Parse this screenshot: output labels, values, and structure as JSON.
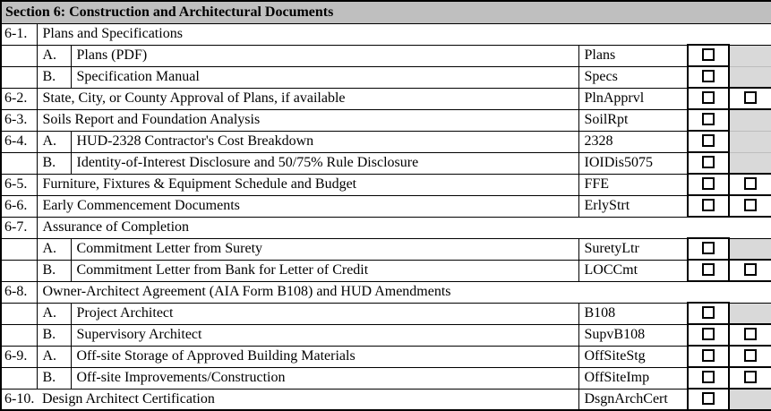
{
  "table": {
    "header": {
      "title": "Section 6: Construction and Architectural Documents"
    },
    "colors": {
      "header_bg": "#bfbfbf",
      "shaded_cell": "#d9d9d9",
      "border": "#000000",
      "background": "#ffffff"
    },
    "checkbox_legend": "all checkboxes unchecked",
    "rows": [
      {
        "type": "group",
        "num": "6-1.",
        "text": "Plans and Specifications"
      },
      {
        "type": "item",
        "num": "",
        "letter": "A.",
        "text": "Plans (PDF)",
        "code": "Plans",
        "box1": "checkbox-unchecked",
        "box2": "shaded"
      },
      {
        "type": "item",
        "num": "",
        "letter": "B.",
        "text": "Specification Manual",
        "code": "Specs",
        "box1": "checkbox-unchecked",
        "box2": "shaded"
      },
      {
        "type": "item",
        "num": "6-2.",
        "letter": null,
        "text": "State, City, or County Approval of Plans, if available",
        "code": "PlnApprvl",
        "box1": "checkbox-unchecked",
        "box2": "checkbox-unchecked"
      },
      {
        "type": "item",
        "num": "6-3.",
        "letter": null,
        "text": "Soils Report and Foundation Analysis",
        "code": "SoilRpt",
        "box1": "checkbox-unchecked",
        "box2": "shaded"
      },
      {
        "type": "item",
        "num": "6-4.",
        "letter": "A.",
        "text": "HUD-2328 Contractor's Cost Breakdown",
        "code": "2328",
        "box1": "checkbox-unchecked",
        "box2": "shaded"
      },
      {
        "type": "item",
        "num": "",
        "letter": "B.",
        "text": "Identity-of-Interest Disclosure and 50/75% Rule Disclosure",
        "code": "IOIDis5075",
        "box1": "checkbox-unchecked",
        "box2": "shaded"
      },
      {
        "type": "item",
        "num": "6-5.",
        "letter": null,
        "text": "Furniture, Fixtures & Equipment Schedule and Budget",
        "code": "FFE",
        "box1": "checkbox-unchecked",
        "box2": "checkbox-unchecked"
      },
      {
        "type": "item",
        "num": "6-6.",
        "letter": null,
        "text": "Early Commencement Documents",
        "code": "ErlyStrt",
        "box1": "checkbox-unchecked",
        "box2": "checkbox-unchecked"
      },
      {
        "type": "group",
        "num": "6-7.",
        "text": "Assurance of Completion"
      },
      {
        "type": "item",
        "num": "",
        "letter": "A.",
        "text": "Commitment Letter from Surety",
        "code": "SuretyLtr",
        "box1": "checkbox-unchecked",
        "box2": "shaded"
      },
      {
        "type": "item",
        "num": "",
        "letter": "B.",
        "text": "Commitment Letter from Bank for Letter of Credit",
        "code": "LOCCmt",
        "box1": "checkbox-unchecked",
        "box2": "checkbox-unchecked"
      },
      {
        "type": "group",
        "num": "6-8.",
        "text": "Owner-Architect Agreement (AIA Form B108) and HUD Amendments"
      },
      {
        "type": "item",
        "num": "",
        "letter": "A.",
        "text": "Project Architect",
        "code": "B108",
        "box1": "checkbox-unchecked",
        "box2": "shaded"
      },
      {
        "type": "item",
        "num": "",
        "letter": "B.",
        "text": "Supervisory Architect",
        "code": "SupvB108",
        "box1": "checkbox-unchecked",
        "box2": "checkbox-unchecked"
      },
      {
        "type": "item",
        "num": "6-9.",
        "letter": "A.",
        "text": "Off-site Storage of Approved Building Materials",
        "code": "OffSiteStg",
        "box1": "checkbox-unchecked",
        "box2": "checkbox-unchecked"
      },
      {
        "type": "item",
        "num": "",
        "letter": "B.",
        "text": "Off-site Improvements/Construction",
        "code": "OffSiteImp",
        "box1": "checkbox-unchecked",
        "box2": "checkbox-unchecked"
      },
      {
        "type": "item",
        "num": "6-10.",
        "letter": null,
        "text": "Design Architect Certification",
        "code": "DsgnArchCert",
        "box1": "checkbox-unchecked",
        "box2": "shaded",
        "merged_number": true
      }
    ]
  }
}
